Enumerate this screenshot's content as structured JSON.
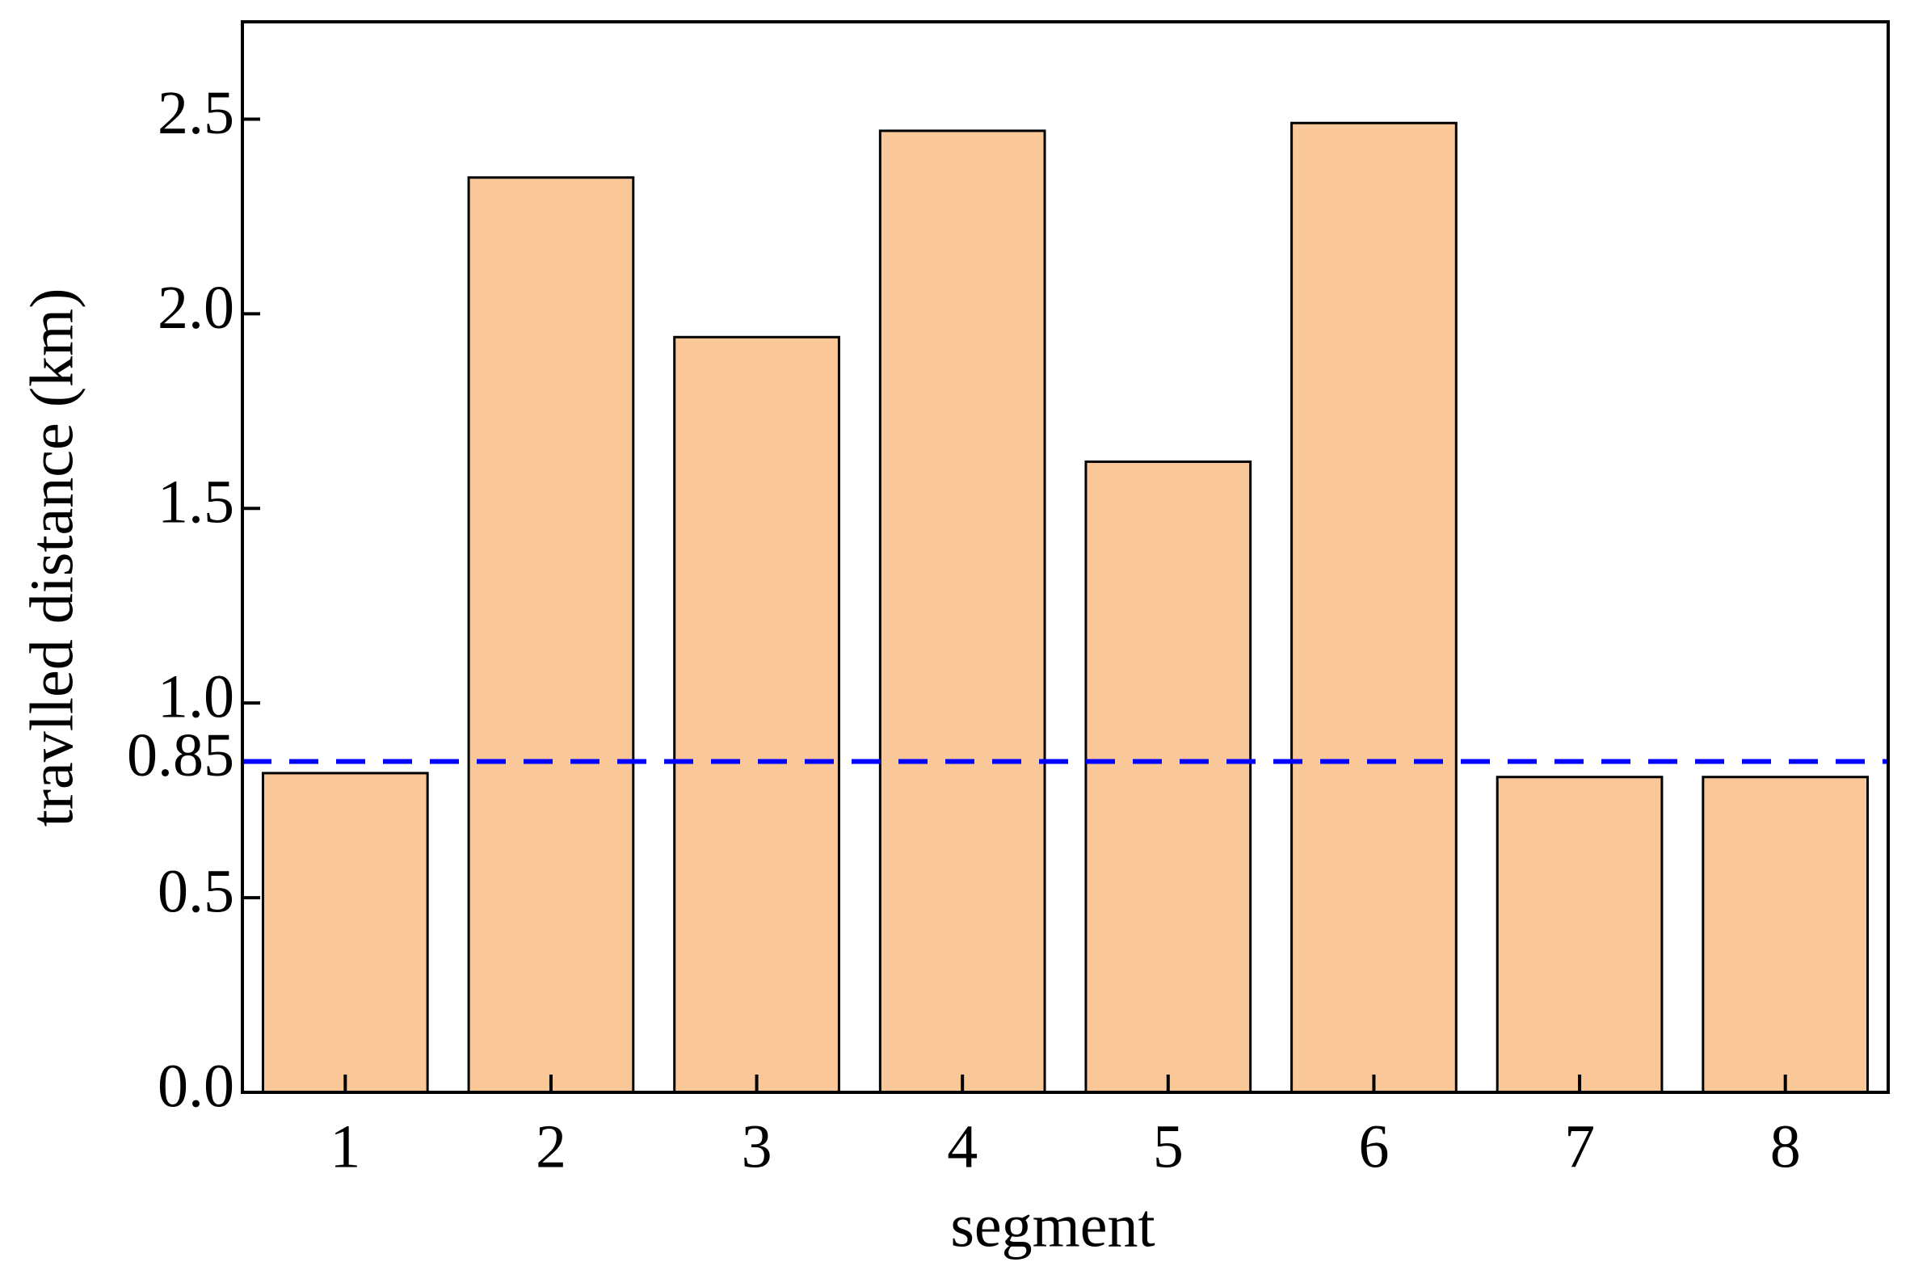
{
  "chart_data": {
    "type": "bar",
    "x_label": "segment",
    "y_label": "travlled distance (km)",
    "categories": [
      "1",
      "2",
      "3",
      "4",
      "5",
      "6",
      "7",
      "8"
    ],
    "values": [
      0.82,
      2.35,
      1.94,
      2.47,
      1.62,
      2.49,
      0.81,
      0.81
    ],
    "color": "#fac898",
    "ylim": [
      0,
      2.75
    ],
    "yticks": [
      {
        "value": 0,
        "label": "0.0"
      },
      0.5,
      0.85,
      {
        "value": 1,
        "label": "1.0"
      },
      1.5,
      {
        "value": 2,
        "label": "2.0"
      },
      2.5
    ],
    "hline": {
      "value": 0.85,
      "color": "#0000ff"
    },
    "grid": false
  }
}
